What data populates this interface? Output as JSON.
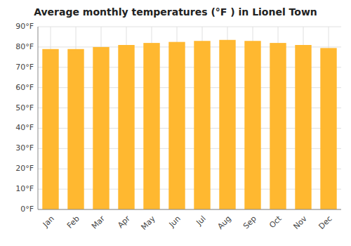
{
  "chart_data": {
    "type": "bar",
    "title": "Average monthly temperatures (°F ) in Lionel Town",
    "categories": [
      "Jan",
      "Feb",
      "Mar",
      "Apr",
      "May",
      "Jun",
      "Jul",
      "Aug",
      "Sep",
      "Oct",
      "Nov",
      "Dec"
    ],
    "values": [
      79,
      79,
      80,
      81,
      82,
      82.5,
      83,
      83.5,
      83,
      82,
      81,
      79.5
    ],
    "color": "#FFB830",
    "ylim": [
      0,
      90
    ],
    "yticks": [
      {
        "value": 0,
        "label": "0°F"
      },
      {
        "value": 10,
        "label": "10°F"
      },
      {
        "value": 20,
        "label": "20°F"
      },
      {
        "value": 30,
        "label": "30°F"
      },
      {
        "value": 40,
        "label": "40°F"
      },
      {
        "value": 50,
        "label": "50°F"
      },
      {
        "value": 60,
        "label": "60°F"
      },
      {
        "value": 70,
        "label": "70°F"
      },
      {
        "value": 80,
        "label": "80°F"
      },
      {
        "value": 90,
        "label": "90°F"
      }
    ],
    "grid": true
  }
}
